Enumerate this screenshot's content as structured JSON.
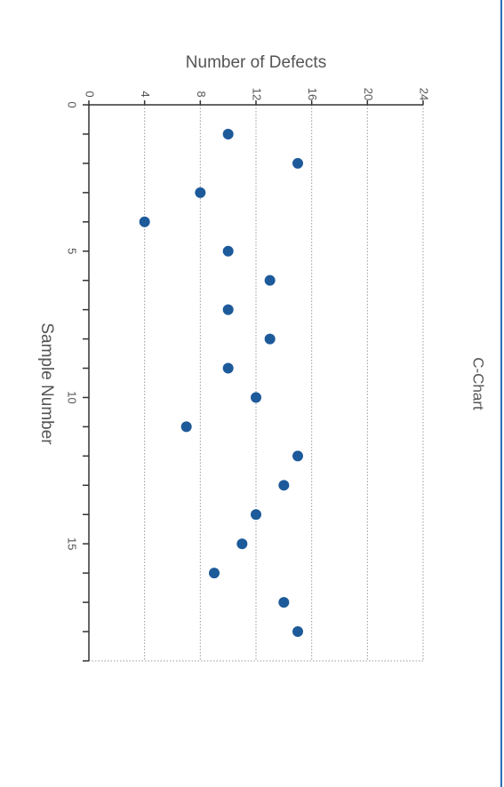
{
  "chart_data": {
    "type": "scatter",
    "title": "C-Chart",
    "xlabel": "Number of Defects",
    "ylabel": "Sample Number",
    "xlim": [
      0,
      24
    ],
    "ylim": [
      0,
      19
    ],
    "x_ticks": [
      0,
      4,
      8,
      12,
      16,
      20,
      24
    ],
    "y_ticks": [
      0,
      5,
      10,
      15
    ],
    "grid": "vertical dotted lines at x ticks",
    "marker_color": "#1d5a9a",
    "points": [
      {
        "sample": 1,
        "defects": 10
      },
      {
        "sample": 2,
        "defects": 15
      },
      {
        "sample": 3,
        "defects": 8
      },
      {
        "sample": 4,
        "defects": 4
      },
      {
        "sample": 5,
        "defects": 10
      },
      {
        "sample": 6,
        "defects": 13
      },
      {
        "sample": 7,
        "defects": 10
      },
      {
        "sample": 8,
        "defects": 13
      },
      {
        "sample": 9,
        "defects": 10
      },
      {
        "sample": 10,
        "defects": 12
      },
      {
        "sample": 11,
        "defects": 7
      },
      {
        "sample": 12,
        "defects": 15
      },
      {
        "sample": 13,
        "defects": 14
      },
      {
        "sample": 14,
        "defects": 12
      },
      {
        "sample": 15,
        "defects": 11
      },
      {
        "sample": 16,
        "defects": 9
      },
      {
        "sample": 17,
        "defects": 14
      },
      {
        "sample": 18,
        "defects": 15
      }
    ]
  }
}
